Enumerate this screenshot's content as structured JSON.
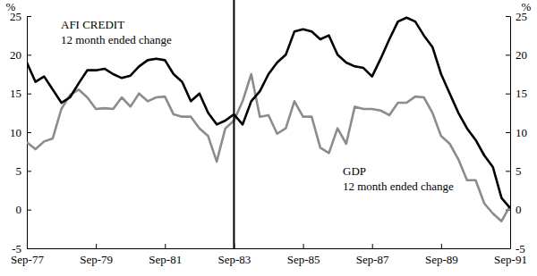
{
  "chart_data": {
    "type": "line",
    "ylabel": "%",
    "annotations": [
      "AFI CREDIT",
      "12 month ended change",
      "GDP",
      "12 month ended change"
    ],
    "vline": "Sep-83",
    "categories": [
      "Sep-77",
      null,
      null,
      null,
      null,
      null,
      null,
      null,
      "Sep-79",
      null,
      null,
      null,
      null,
      null,
      null,
      null,
      "Sep-81",
      null,
      null,
      null,
      null,
      null,
      null,
      null,
      "Sep-83",
      null,
      null,
      null,
      null,
      null,
      null,
      null,
      "Sep-85",
      null,
      null,
      null,
      null,
      null,
      null,
      null,
      "Sep-87",
      null,
      null,
      null,
      null,
      null,
      null,
      null,
      "Sep-89",
      null,
      null,
      null,
      null,
      null,
      null,
      null,
      "Sep-91"
    ],
    "series": [
      {
        "name": "AFI CREDIT",
        "color": "#000000",
        "values": [
          19,
          16.5,
          17.2,
          15.5,
          13.8,
          14.5,
          16.3,
          18,
          18,
          18.2,
          17.5,
          17,
          17.3,
          18.5,
          19.3,
          19.5,
          19.3,
          17.5,
          16.5,
          14,
          15,
          12.5,
          11,
          11.5,
          12.3,
          11,
          14,
          15.3,
          17.5,
          19,
          20,
          23,
          23.3,
          23,
          22,
          22.5,
          20,
          19,
          18.5,
          18.3,
          17.2,
          19.5,
          22,
          24.3,
          24.8,
          24.3,
          22.5,
          21,
          17.5,
          15,
          12.5,
          10.5,
          9,
          7,
          5.5,
          1.5,
          0.2
        ]
      },
      {
        "name": "GDP",
        "color": "#8c8c8c",
        "values": [
          8.7,
          7.8,
          8.8,
          9.2,
          13,
          14.8,
          15.5,
          14.5,
          13,
          13.1,
          13,
          14.5,
          13.3,
          15,
          14,
          14.5,
          14.6,
          12.3,
          12,
          12,
          10.5,
          9.5,
          6.2,
          10.5,
          11.5,
          14,
          17.5,
          12,
          12.2,
          9.8,
          10.5,
          14,
          12,
          12,
          8,
          7.3,
          10.5,
          8.5,
          13.3,
          13,
          13,
          12.8,
          12.2,
          13.8,
          13.8,
          14.6,
          14.5,
          12.5,
          9.5,
          8.5,
          6.5,
          3.8,
          3.8,
          0.8,
          -0.5,
          -1.5,
          0.5
        ]
      }
    ],
    "ylim": [
      -5,
      25
    ],
    "yticks": [
      -5,
      0,
      5,
      10,
      15,
      20,
      25
    ]
  }
}
